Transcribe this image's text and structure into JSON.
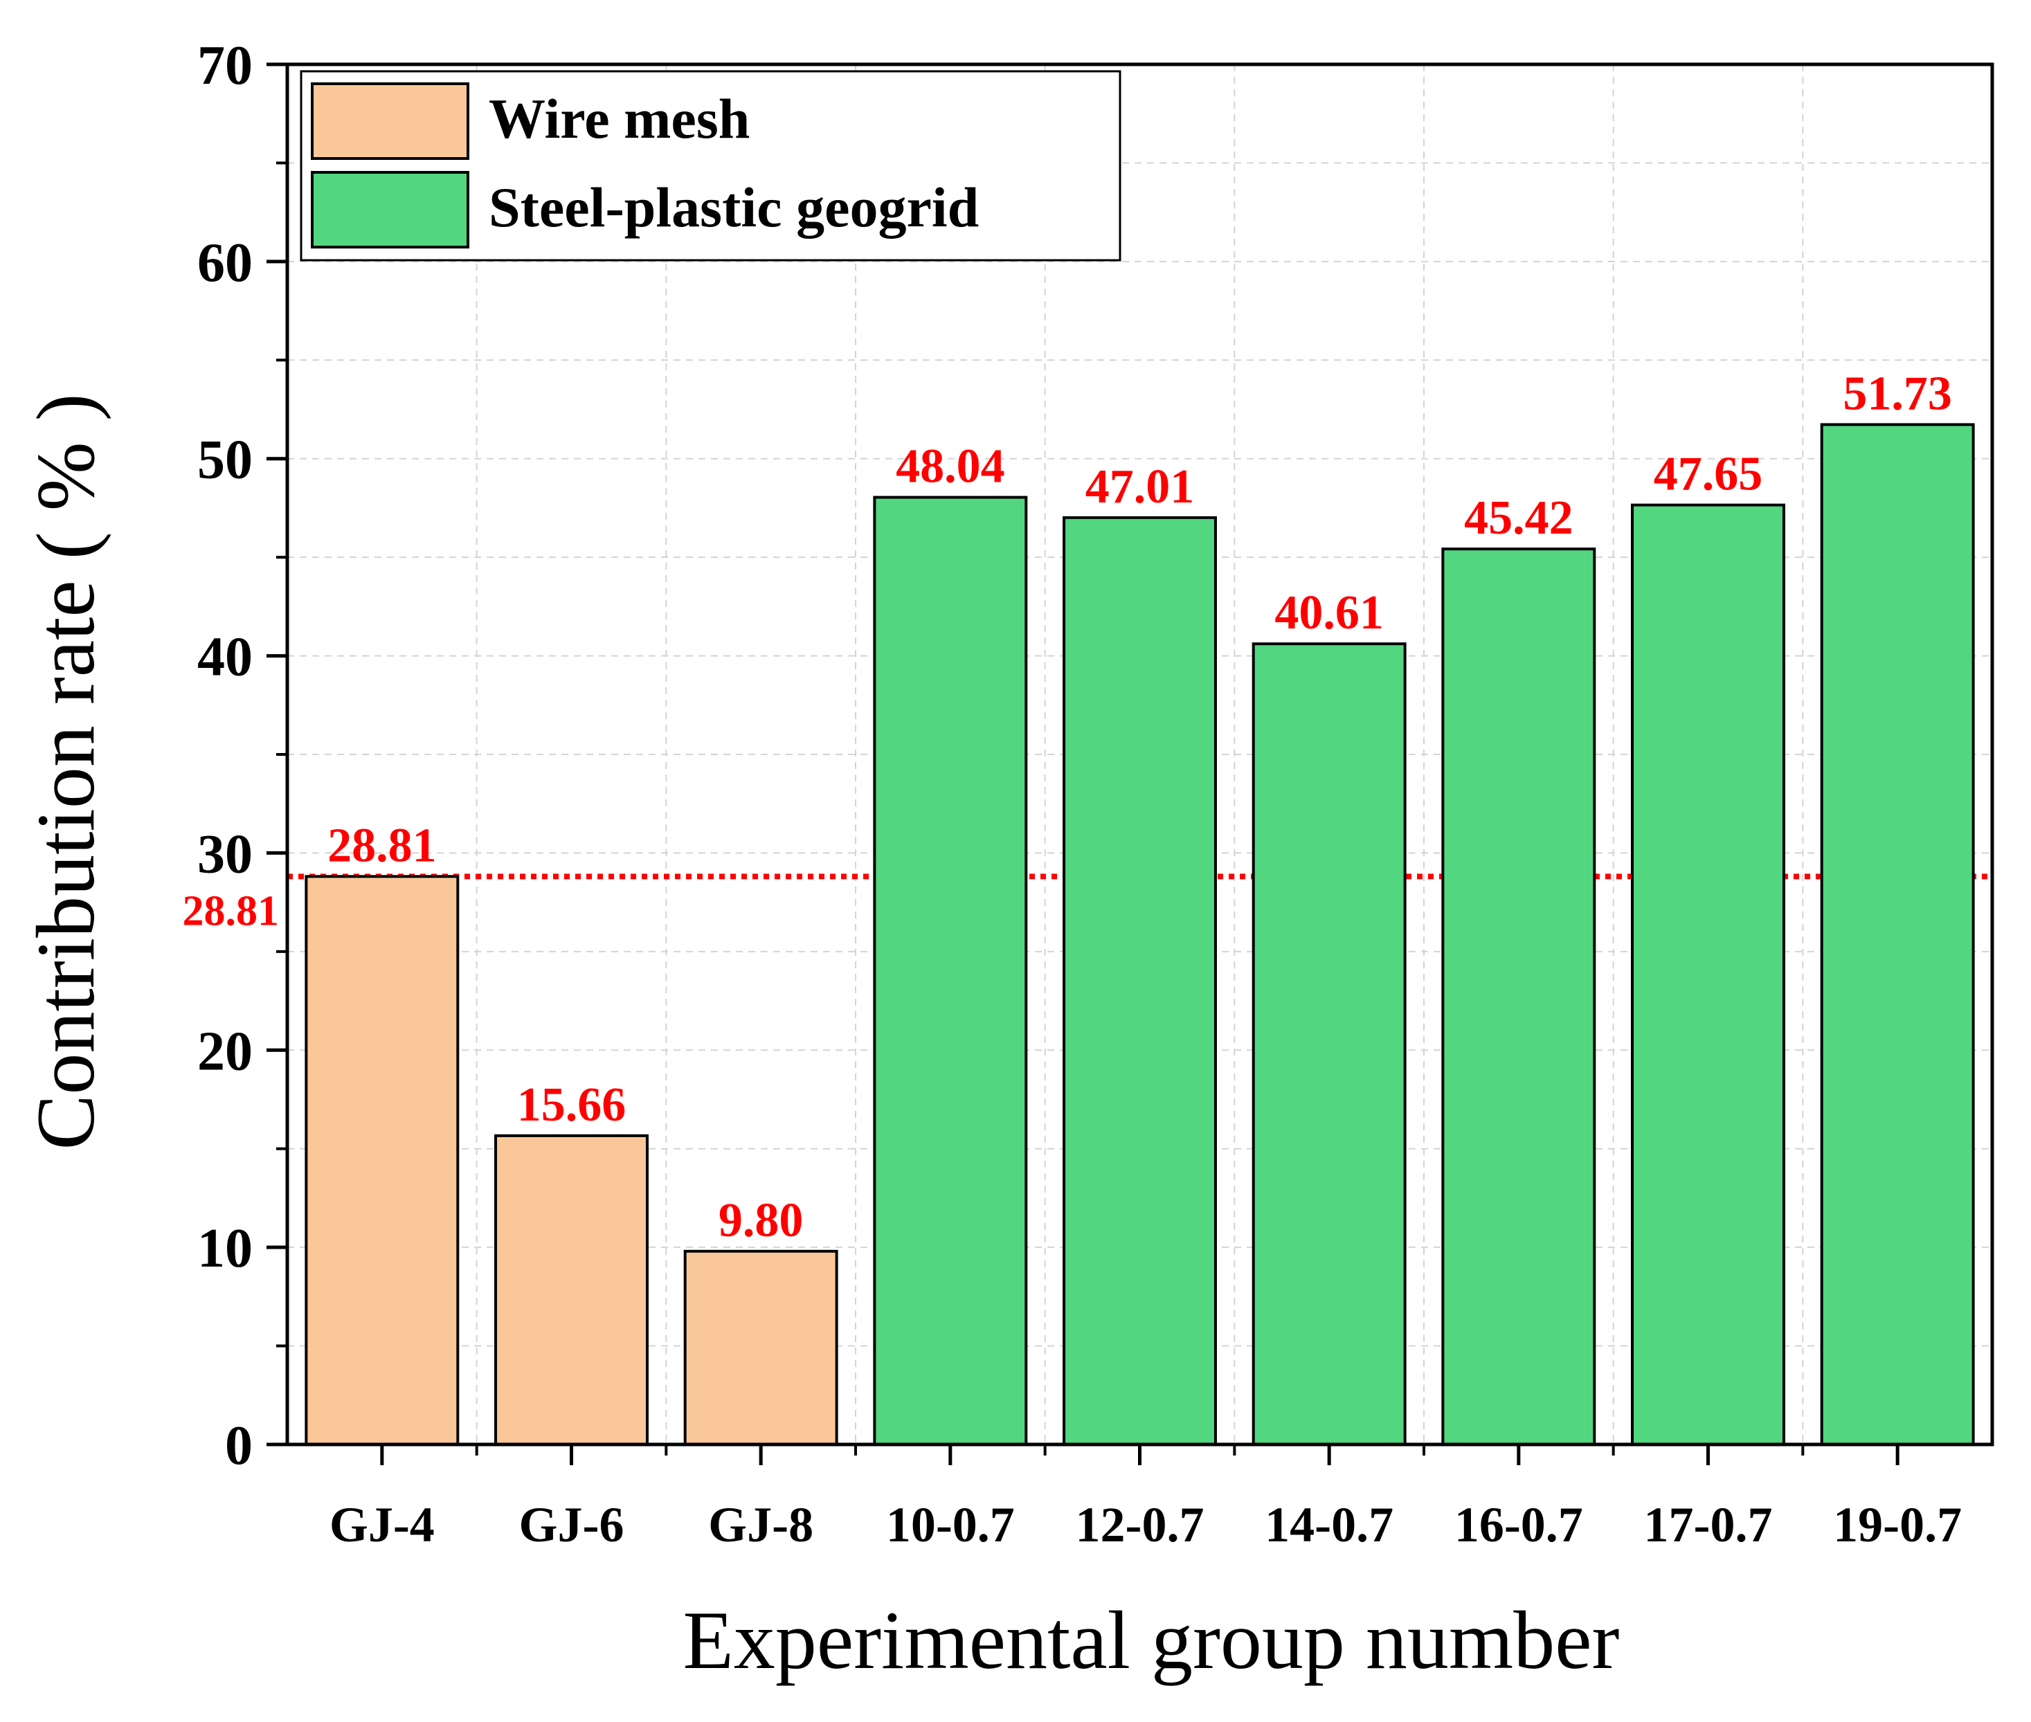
{
  "chart_data": {
    "type": "bar",
    "xlabel": "Experimental group number",
    "ylabel": "Contribution rate ( % )",
    "ylim": [
      0,
      70
    ],
    "yticks": [
      0,
      10,
      20,
      30,
      40,
      50,
      60,
      70
    ],
    "grid": true,
    "legend_position": "top-left",
    "categories": [
      "GJ-4",
      "GJ-6",
      "GJ-8",
      "10-0.7",
      "12-0.7",
      "14-0.7",
      "16-0.7",
      "17-0.7",
      "19-0.7"
    ],
    "values": [
      28.81,
      15.66,
      9.8,
      48.04,
      47.01,
      40.61,
      45.42,
      47.65,
      51.73
    ],
    "value_labels": [
      "28.81",
      "15.66",
      "9.80",
      "48.04",
      "47.01",
      "40.61",
      "45.42",
      "47.65",
      "51.73"
    ],
    "bar_series": [
      "Wire mesh",
      "Wire mesh",
      "Wire mesh",
      "Steel-plastic geogrid",
      "Steel-plastic geogrid",
      "Steel-plastic geogrid",
      "Steel-plastic geogrid",
      "Steel-plastic geogrid",
      "Steel-plastic geogrid"
    ],
    "series": [
      {
        "name": "Wire mesh",
        "color": "#fac898"
      },
      {
        "name": "Steel-plastic geogrid",
        "color": "#52d680"
      }
    ],
    "reference_line": {
      "value": 28.81,
      "label": "28.81",
      "color": "#ff0000",
      "style": "dotted"
    },
    "label_color": "#ff0000"
  }
}
